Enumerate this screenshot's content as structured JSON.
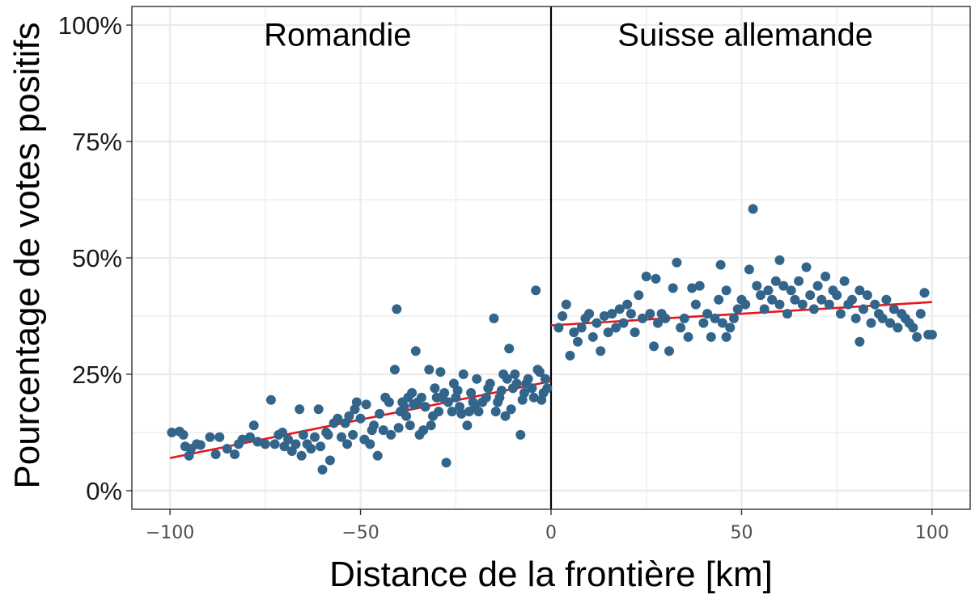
{
  "chart_data": {
    "type": "scatter",
    "title": "",
    "xlabel": "Distance de la frontière [km]",
    "ylabel": "Pourcentage de votes positifs",
    "xlim": [
      -110,
      110
    ],
    "ylim": [
      -4,
      104
    ],
    "xticks": [
      -100,
      -50,
      0,
      50,
      100
    ],
    "xtick_labels": [
      "−100",
      "−50",
      "0",
      "50",
      "100"
    ],
    "yticks": [
      0,
      25,
      50,
      75,
      100
    ],
    "ytick_labels": [
      "0%",
      "25%",
      "50%",
      "75%",
      "100%"
    ],
    "grid": true,
    "legend": "none",
    "annotations": [
      {
        "text": "Romandie",
        "x": -56,
        "y": 98
      },
      {
        "text": "Suisse allemande",
        "x": 51,
        "y": 98
      }
    ],
    "vline": {
      "x": 0
    },
    "colors": {
      "points": "#33658a",
      "fit": "#e8141b",
      "grid": "#ebebeb",
      "panel_border": "#333333",
      "vline": "#000000"
    },
    "fits": [
      {
        "x": [
          -100,
          0
        ],
        "y": [
          7.0,
          23.5
        ]
      },
      {
        "x": [
          0,
          100
        ],
        "y": [
          35.5,
          40.5
        ]
      }
    ],
    "series": [
      {
        "points": [
          [
            -99.5,
            12.5
          ],
          [
            -97.5,
            12.7
          ],
          [
            -96.5,
            12.0
          ],
          [
            -96,
            9.5
          ],
          [
            -95,
            7.5
          ],
          [
            -94.5,
            9
          ],
          [
            -93,
            10
          ],
          [
            -92,
            9.8
          ],
          [
            -89.5,
            11.5
          ],
          [
            -88,
            7.8
          ],
          [
            -87,
            11.5
          ],
          [
            -85,
            9
          ],
          [
            -83,
            7.8
          ],
          [
            -82,
            10
          ],
          [
            -81,
            11
          ],
          [
            -79,
            11.5
          ],
          [
            -78,
            14
          ],
          [
            -77,
            10.5
          ],
          [
            -75,
            10
          ],
          [
            -73.5,
            19.5
          ],
          [
            -72.5,
            10
          ],
          [
            -71.5,
            12
          ],
          [
            -70.5,
            12.5
          ],
          [
            -70,
            9.5
          ],
          [
            -69,
            11
          ],
          [
            -68,
            8.5
          ],
          [
            -67,
            10
          ],
          [
            -66,
            17.5
          ],
          [
            -65.5,
            7.5
          ],
          [
            -65,
            12
          ],
          [
            -64,
            10
          ],
          [
            -63,
            9
          ],
          [
            -62,
            11.5
          ],
          [
            -61,
            17.5
          ],
          [
            -60,
            4.5
          ],
          [
            -59,
            12.5
          ],
          [
            -58,
            6.5
          ],
          [
            -57,
            14.5
          ],
          [
            -56,
            15.5
          ],
          [
            -55,
            11.5
          ],
          [
            -54,
            14.5
          ],
          [
            -53.5,
            10
          ],
          [
            -53,
            16
          ],
          [
            -52,
            12
          ],
          [
            -51.5,
            17.5
          ],
          [
            -51,
            19
          ],
          [
            -50,
            15.5
          ],
          [
            -49,
            11
          ],
          [
            -48.5,
            18.5
          ],
          [
            -47.5,
            10
          ],
          [
            -46.5,
            14
          ],
          [
            -45.5,
            7.5
          ],
          [
            -45,
            16.5
          ],
          [
            -44,
            13
          ],
          [
            -43.5,
            20
          ],
          [
            -42.5,
            19
          ],
          [
            -42,
            12
          ],
          [
            -41,
            26
          ],
          [
            -40.5,
            39
          ],
          [
            -40,
            13.5
          ],
          [
            -39.5,
            17
          ],
          [
            -39,
            19
          ],
          [
            -38.5,
            18
          ],
          [
            -38,
            16
          ],
          [
            -37.5,
            20
          ],
          [
            -37,
            14
          ],
          [
            -36.5,
            21
          ],
          [
            -36,
            18.5
          ],
          [
            -35.5,
            30
          ],
          [
            -35,
            19
          ],
          [
            -34.5,
            12
          ],
          [
            -34,
            20
          ],
          [
            -33,
            18
          ],
          [
            -32,
            26
          ],
          [
            -31.5,
            14
          ],
          [
            -31,
            16
          ],
          [
            -30.5,
            22
          ],
          [
            -30,
            20
          ],
          [
            -29.5,
            17
          ],
          [
            -29,
            25.5
          ],
          [
            -28.5,
            20
          ],
          [
            -28,
            21
          ],
          [
            -27.5,
            6
          ],
          [
            -27,
            19
          ],
          [
            -26,
            17
          ],
          [
            -25.5,
            23
          ],
          [
            -25,
            20
          ],
          [
            -24.5,
            21.5
          ],
          [
            -24,
            18
          ],
          [
            -23.5,
            16.5
          ],
          [
            -23,
            25
          ],
          [
            -22,
            14
          ],
          [
            -21,
            21
          ],
          [
            -20.5,
            19
          ],
          [
            -20,
            18
          ],
          [
            -19.5,
            24
          ],
          [
            -19,
            17
          ],
          [
            -18,
            19
          ],
          [
            -17,
            20
          ],
          [
            -16,
            23
          ],
          [
            -15,
            37
          ],
          [
            -14.5,
            17
          ],
          [
            -14,
            19
          ],
          [
            -13.5,
            20
          ],
          [
            -13,
            21.5
          ],
          [
            -12.5,
            25
          ],
          [
            -12,
            16
          ],
          [
            -11.5,
            24
          ],
          [
            -11,
            30.5
          ],
          [
            -10.5,
            17.5
          ],
          [
            -10,
            22
          ],
          [
            -9.5,
            25
          ],
          [
            -9,
            23
          ],
          [
            -8,
            12
          ],
          [
            -7.5,
            19.5
          ],
          [
            -7,
            21
          ],
          [
            -6.5,
            23
          ],
          [
            -6,
            24
          ],
          [
            -5,
            22
          ],
          [
            -4.5,
            20
          ],
          [
            -4,
            43
          ],
          [
            -3.5,
            26
          ],
          [
            -3,
            25.5
          ],
          [
            -2.5,
            19.5
          ],
          [
            -2,
            21
          ],
          [
            -1.5,
            24
          ],
          [
            -1,
            22
          ],
          [
            -47,
            13
          ],
          [
            -58.5,
            12
          ],
          [
            -60.5,
            9.5
          ],
          [
            -33.5,
            13
          ],
          [
            -21.5,
            17
          ],
          [
            -16.5,
            22
          ]
        ]
      },
      {
        "points": [
          [
            2,
            35
          ],
          [
            3,
            37.5
          ],
          [
            4,
            40
          ],
          [
            5,
            29
          ],
          [
            6,
            34
          ],
          [
            7,
            32
          ],
          [
            8,
            35
          ],
          [
            9,
            37
          ],
          [
            10,
            38
          ],
          [
            11,
            33
          ],
          [
            12,
            36
          ],
          [
            13,
            30
          ],
          [
            14,
            37.5
          ],
          [
            15,
            34
          ],
          [
            16,
            38
          ],
          [
            17,
            35
          ],
          [
            18,
            39
          ],
          [
            19,
            36
          ],
          [
            20,
            40
          ],
          [
            21,
            38
          ],
          [
            22,
            34
          ],
          [
            23,
            42
          ],
          [
            24,
            37
          ],
          [
            25,
            46
          ],
          [
            26,
            38
          ],
          [
            27,
            31
          ],
          [
            28,
            36
          ],
          [
            29,
            38
          ],
          [
            30,
            37
          ],
          [
            31,
            30
          ],
          [
            32,
            43.5
          ],
          [
            33,
            49
          ],
          [
            34,
            35
          ],
          [
            35,
            37
          ],
          [
            36,
            33
          ],
          [
            37,
            43.5
          ],
          [
            38,
            40
          ],
          [
            39,
            44
          ],
          [
            40,
            36
          ],
          [
            41,
            38
          ],
          [
            42,
            33
          ],
          [
            43,
            37
          ],
          [
            44,
            41
          ],
          [
            45,
            36
          ],
          [
            46,
            43
          ],
          [
            47,
            35
          ],
          [
            48,
            37
          ],
          [
            49,
            39
          ],
          [
            50,
            41
          ],
          [
            51,
            40
          ],
          [
            52,
            47.5
          ],
          [
            53,
            60.5
          ],
          [
            54,
            44
          ],
          [
            55,
            42
          ],
          [
            56,
            39
          ],
          [
            57,
            43
          ],
          [
            58,
            41
          ],
          [
            59,
            45
          ],
          [
            60,
            40
          ],
          [
            61,
            44
          ],
          [
            62,
            38
          ],
          [
            63,
            43
          ],
          [
            64,
            41
          ],
          [
            65,
            45
          ],
          [
            66,
            40
          ],
          [
            67,
            48
          ],
          [
            68,
            42
          ],
          [
            69,
            39
          ],
          [
            70,
            44
          ],
          [
            71,
            41
          ],
          [
            72,
            46
          ],
          [
            73,
            40
          ],
          [
            74,
            43
          ],
          [
            75,
            42
          ],
          [
            76,
            38
          ],
          [
            77,
            45
          ],
          [
            78,
            40
          ],
          [
            79,
            41
          ],
          [
            80,
            37
          ],
          [
            81,
            43
          ],
          [
            82,
            39
          ],
          [
            83,
            42
          ],
          [
            84,
            36
          ],
          [
            85,
            40
          ],
          [
            86,
            38
          ],
          [
            87,
            37
          ],
          [
            88,
            41
          ],
          [
            89,
            36
          ],
          [
            90,
            39
          ],
          [
            91,
            35
          ],
          [
            92,
            38
          ],
          [
            93,
            37
          ],
          [
            94,
            36
          ],
          [
            95,
            35
          ],
          [
            96,
            33
          ],
          [
            97,
            38
          ],
          [
            98,
            42.5
          ],
          [
            99,
            33.5
          ],
          [
            100,
            33.5
          ],
          [
            44.5,
            48.5
          ],
          [
            46,
            33
          ],
          [
            60,
            49.5
          ],
          [
            81,
            32
          ],
          [
            27.5,
            45.5
          ]
        ]
      }
    ]
  }
}
